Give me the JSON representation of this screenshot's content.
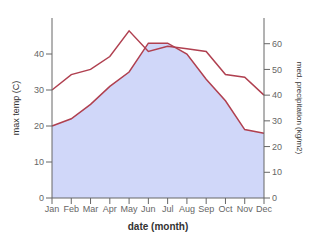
{
  "chart_data": {
    "type": "line",
    "xlabel": "date (month)",
    "ylabel": "max temp (C)",
    "y2label": "med. precipitation (kg/m2)",
    "categories": [
      "Jan",
      "Feb",
      "Mar",
      "Apr",
      "May",
      "Jun",
      "Jul",
      "Aug",
      "Sep",
      "Oct",
      "Nov",
      "Dec"
    ],
    "series": [
      {
        "type": "area",
        "color": "#c8d0f8",
        "values": [
          20,
          22,
          26,
          31,
          35,
          43,
          43,
          40,
          33,
          27,
          19,
          18
        ]
      },
      {
        "type": "line",
        "color": "#b04050",
        "values": [
          20,
          22,
          26,
          31,
          35,
          43,
          43,
          40,
          33,
          27,
          19,
          18
        ]
      },
      {
        "type": "line",
        "color": "#b04050",
        "axis": "y2",
        "values": [
          42,
          48,
          50,
          55,
          65,
          57,
          59,
          58,
          57,
          48,
          47,
          40
        ]
      }
    ],
    "ylim": [
      0,
      50
    ],
    "yticks": [
      0,
      10,
      20,
      30,
      40
    ],
    "y2lim": [
      0,
      70
    ],
    "y2ticks": [
      0,
      10,
      20,
      30,
      40,
      50,
      60
    ],
    "grid": false
  }
}
